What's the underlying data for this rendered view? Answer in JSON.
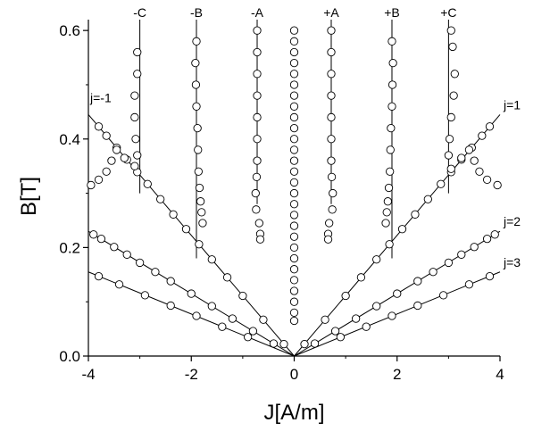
{
  "chart_data": {
    "type": "scatter",
    "xlabel": "J[A/m]",
    "ylabel": "B[T]",
    "xlim": [
      -4,
      4
    ],
    "ylim": [
      0,
      0.62
    ],
    "x_ticks": [
      -4,
      -2,
      0,
      2,
      4
    ],
    "x_tick_labels": [
      "-4",
      "-2",
      "0",
      "2",
      "4"
    ],
    "y_ticks": [
      0.0,
      0.2,
      0.4,
      0.6
    ],
    "y_tick_labels": [
      "0.0",
      "0.2",
      "0.4",
      "0.6"
    ],
    "grid": false,
    "fan_lines": [
      {
        "label": "j=1",
        "points": [
          [
            0,
            0
          ],
          [
            4,
            0.445
          ]
        ]
      },
      {
        "label": "j=2",
        "points": [
          [
            0,
            0
          ],
          [
            4,
            0.23
          ]
        ]
      },
      {
        "label": "j=3",
        "points": [
          [
            0,
            0
          ],
          [
            4,
            0.155
          ]
        ]
      },
      {
        "label": "j=-1",
        "points": [
          [
            0,
            0
          ],
          [
            -4,
            0.445
          ]
        ]
      },
      {
        "label": "",
        "points": [
          [
            0,
            0
          ],
          [
            -4,
            0.23
          ]
        ]
      },
      {
        "label": "",
        "points": [
          [
            0,
            0
          ],
          [
            -4,
            0.155
          ]
        ]
      }
    ],
    "vertical_lines": [
      {
        "label": "-C",
        "x": -3.0,
        "y_range": [
          0.3,
          0.62
        ]
      },
      {
        "label": "-B",
        "x": -1.9,
        "y_range": [
          0.18,
          0.62
        ]
      },
      {
        "label": "-A",
        "x": -0.72,
        "y_range": [
          0.28,
          0.62
        ]
      },
      {
        "label": "+A",
        "x": 0.72,
        "y_range": [
          0.28,
          0.62
        ]
      },
      {
        "label": "+B",
        "x": 1.9,
        "y_range": [
          0.18,
          0.62
        ]
      },
      {
        "label": "+C",
        "x": 3.0,
        "y_range": [
          0.3,
          0.62
        ]
      }
    ],
    "series": [
      {
        "points": [
          [
            0.2,
            0.022
          ],
          [
            0.6,
            0.067
          ],
          [
            1.0,
            0.111
          ],
          [
            1.3,
            0.145
          ],
          [
            1.6,
            0.178
          ],
          [
            1.85,
            0.206
          ],
          [
            2.1,
            0.234
          ],
          [
            2.35,
            0.261
          ],
          [
            2.6,
            0.289
          ],
          [
            2.85,
            0.317
          ],
          [
            3.05,
            0.339
          ],
          [
            3.25,
            0.362
          ],
          [
            3.45,
            0.384
          ],
          [
            3.65,
            0.406
          ],
          [
            3.8,
            0.423
          ],
          [
            0.4,
            0.023
          ],
          [
            0.8,
            0.046
          ],
          [
            1.2,
            0.069
          ],
          [
            1.6,
            0.092
          ],
          [
            2.0,
            0.115
          ],
          [
            2.4,
            0.138
          ],
          [
            2.7,
            0.155
          ],
          [
            3.0,
            0.172
          ],
          [
            3.25,
            0.187
          ],
          [
            3.5,
            0.201
          ],
          [
            3.75,
            0.216
          ],
          [
            3.9,
            0.224
          ],
          [
            0.9,
            0.035
          ],
          [
            1.4,
            0.054
          ],
          [
            1.9,
            0.074
          ],
          [
            2.4,
            0.093
          ],
          [
            2.9,
            0.112
          ],
          [
            3.4,
            0.132
          ],
          [
            3.8,
            0.147
          ],
          [
            -0.2,
            0.022
          ],
          [
            -0.6,
            0.067
          ],
          [
            -1.0,
            0.111
          ],
          [
            -1.3,
            0.145
          ],
          [
            -1.6,
            0.178
          ],
          [
            -1.85,
            0.206
          ],
          [
            -2.1,
            0.234
          ],
          [
            -2.35,
            0.261
          ],
          [
            -2.6,
            0.289
          ],
          [
            -2.85,
            0.317
          ],
          [
            -3.05,
            0.339
          ],
          [
            -3.25,
            0.362
          ],
          [
            -3.45,
            0.384
          ],
          [
            -3.65,
            0.406
          ],
          [
            -3.8,
            0.423
          ],
          [
            -0.4,
            0.023
          ],
          [
            -0.8,
            0.046
          ],
          [
            -1.2,
            0.069
          ],
          [
            -1.6,
            0.092
          ],
          [
            -2.0,
            0.115
          ],
          [
            -2.4,
            0.138
          ],
          [
            -2.7,
            0.155
          ],
          [
            -3.0,
            0.172
          ],
          [
            -3.25,
            0.187
          ],
          [
            -3.5,
            0.201
          ],
          [
            -3.75,
            0.216
          ],
          [
            -3.9,
            0.224
          ],
          [
            -0.9,
            0.035
          ],
          [
            -1.4,
            0.054
          ],
          [
            -1.9,
            0.074
          ],
          [
            -2.4,
            0.093
          ],
          [
            -2.9,
            0.112
          ],
          [
            -3.4,
            0.132
          ],
          [
            -3.8,
            0.147
          ],
          [
            0.72,
            0.6
          ],
          [
            0.72,
            0.56
          ],
          [
            0.72,
            0.52
          ],
          [
            0.72,
            0.48
          ],
          [
            0.72,
            0.44
          ],
          [
            0.72,
            0.4
          ],
          [
            0.72,
            0.36
          ],
          [
            0.73,
            0.33
          ],
          [
            0.75,
            0.3
          ],
          [
            0.74,
            0.27
          ],
          [
            0.68,
            0.245
          ],
          [
            0.66,
            0.225
          ],
          [
            0.66,
            0.215
          ],
          [
            1.9,
            0.58
          ],
          [
            1.92,
            0.54
          ],
          [
            1.91,
            0.5
          ],
          [
            1.9,
            0.46
          ],
          [
            1.88,
            0.42
          ],
          [
            1.87,
            0.38
          ],
          [
            1.86,
            0.34
          ],
          [
            1.84,
            0.31
          ],
          [
            1.82,
            0.285
          ],
          [
            1.8,
            0.265
          ],
          [
            1.78,
            0.245
          ],
          [
            3.05,
            0.6
          ],
          [
            3.08,
            0.57
          ],
          [
            3.12,
            0.52
          ],
          [
            3.1,
            0.48
          ],
          [
            3.05,
            0.44
          ],
          [
            3.02,
            0.4
          ],
          [
            3.0,
            0.37
          ],
          [
            3.05,
            0.345
          ],
          [
            3.25,
            0.365
          ],
          [
            3.4,
            0.38
          ],
          [
            3.5,
            0.36
          ],
          [
            3.6,
            0.34
          ],
          [
            3.75,
            0.325
          ],
          [
            3.95,
            0.315
          ],
          [
            -0.72,
            0.6
          ],
          [
            -0.72,
            0.56
          ],
          [
            -0.72,
            0.52
          ],
          [
            -0.72,
            0.48
          ],
          [
            -0.72,
            0.44
          ],
          [
            -0.72,
            0.4
          ],
          [
            -0.72,
            0.36
          ],
          [
            -0.73,
            0.33
          ],
          [
            -0.75,
            0.3
          ],
          [
            -0.74,
            0.27
          ],
          [
            -0.68,
            0.245
          ],
          [
            -0.66,
            0.225
          ],
          [
            -0.66,
            0.215
          ],
          [
            -1.9,
            0.58
          ],
          [
            -1.92,
            0.54
          ],
          [
            -1.91,
            0.5
          ],
          [
            -1.9,
            0.46
          ],
          [
            -1.88,
            0.42
          ],
          [
            -1.87,
            0.38
          ],
          [
            -1.86,
            0.34
          ],
          [
            -1.84,
            0.31
          ],
          [
            -1.82,
            0.285
          ],
          [
            -1.8,
            0.265
          ],
          [
            -1.78,
            0.245
          ],
          [
            -3.05,
            0.56
          ],
          [
            -3.05,
            0.52
          ],
          [
            -3.1,
            0.48
          ],
          [
            -3.1,
            0.44
          ],
          [
            -3.08,
            0.4
          ],
          [
            -3.05,
            0.37
          ],
          [
            -3.1,
            0.35
          ],
          [
            -3.3,
            0.365
          ],
          [
            -3.45,
            0.38
          ],
          [
            -3.55,
            0.36
          ],
          [
            -3.65,
            0.34
          ],
          [
            -3.8,
            0.325
          ],
          [
            -3.95,
            0.315
          ],
          [
            0,
            0.6
          ],
          [
            0,
            0.58
          ],
          [
            0,
            0.56
          ],
          [
            0,
            0.54
          ],
          [
            0,
            0.52
          ],
          [
            0,
            0.5
          ],
          [
            0,
            0.48
          ],
          [
            0,
            0.46
          ],
          [
            0,
            0.44
          ],
          [
            0,
            0.42
          ],
          [
            0,
            0.4
          ],
          [
            0,
            0.38
          ],
          [
            0,
            0.36
          ],
          [
            0,
            0.34
          ],
          [
            0,
            0.32
          ],
          [
            0,
            0.3
          ],
          [
            0,
            0.28
          ],
          [
            0,
            0.26
          ],
          [
            0,
            0.24
          ],
          [
            0,
            0.22
          ],
          [
            0,
            0.2
          ],
          [
            0,
            0.18
          ],
          [
            0,
            0.16
          ],
          [
            0,
            0.14
          ],
          [
            0,
            0.12
          ],
          [
            0,
            0.1
          ],
          [
            0,
            0.08
          ],
          [
            0,
            0.065
          ]
        ]
      }
    ]
  }
}
